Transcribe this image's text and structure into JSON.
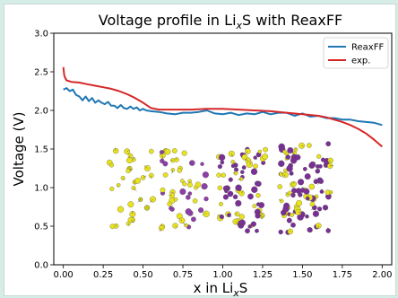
{
  "chart_data": {
    "type": "line",
    "title": "Voltage profile in Li<sub>x</sub>S with ReaxFF",
    "title_parts": {
      "prefix": "Voltage profile in Li",
      "sub": "x",
      "suffix": "S with ReaxFF"
    },
    "xlabel_parts": {
      "prefix": "x in Li",
      "sub": "x",
      "suffix": "S"
    },
    "ylabel": "Voltage (V)",
    "xlim": [
      -0.06,
      2.06
    ],
    "ylim": [
      0.0,
      3.0
    ],
    "xticks": [
      "0.00",
      "0.25",
      "0.50",
      "0.75",
      "1.00",
      "1.25",
      "1.50",
      "1.75",
      "2.00"
    ],
    "yticks": [
      "0.0",
      "0.5",
      "1.0",
      "1.5",
      "2.0",
      "2.5",
      "3.0"
    ],
    "legend_position": "top-right",
    "series": [
      {
        "name": "ReaxFF",
        "color": "#1f77b4",
        "x": [
          0.0,
          0.02,
          0.04,
          0.06,
          0.08,
          0.1,
          0.12,
          0.14,
          0.16,
          0.18,
          0.2,
          0.22,
          0.24,
          0.26,
          0.28,
          0.3,
          0.32,
          0.34,
          0.36,
          0.38,
          0.4,
          0.42,
          0.44,
          0.46,
          0.48,
          0.5,
          0.52,
          0.55,
          0.6,
          0.65,
          0.7,
          0.75,
          0.8,
          0.85,
          0.9,
          0.95,
          1.0,
          1.05,
          1.1,
          1.15,
          1.2,
          1.25,
          1.3,
          1.35,
          1.4,
          1.45,
          1.5,
          1.55,
          1.6,
          1.65,
          1.7,
          1.75,
          1.8,
          1.85,
          1.9,
          1.95,
          2.0
        ],
        "y": [
          2.27,
          2.29,
          2.25,
          2.27,
          2.2,
          2.18,
          2.13,
          2.18,
          2.12,
          2.16,
          2.1,
          2.13,
          2.1,
          2.08,
          2.11,
          2.06,
          2.06,
          2.03,
          2.07,
          2.03,
          2.02,
          2.05,
          2.02,
          2.04,
          2.0,
          2.02,
          2.0,
          1.99,
          1.98,
          1.96,
          1.95,
          1.97,
          1.97,
          1.98,
          2.0,
          1.96,
          1.95,
          1.97,
          1.94,
          1.96,
          1.95,
          1.98,
          1.95,
          1.97,
          1.97,
          1.93,
          1.96,
          1.92,
          1.93,
          1.9,
          1.9,
          1.88,
          1.88,
          1.86,
          1.85,
          1.84,
          1.81
        ]
      },
      {
        "name": "exp.",
        "color": "#d62728",
        "x": [
          0.0,
          0.005,
          0.01,
          0.02,
          0.05,
          0.1,
          0.15,
          0.2,
          0.25,
          0.3,
          0.35,
          0.4,
          0.45,
          0.5,
          0.55,
          0.6,
          0.7,
          0.8,
          0.9,
          1.0,
          1.1,
          1.2,
          1.3,
          1.4,
          1.5,
          1.6,
          1.65,
          1.7,
          1.75,
          1.8,
          1.85,
          1.9,
          1.95,
          2.0
        ],
        "y": [
          2.56,
          2.46,
          2.43,
          2.39,
          2.37,
          2.36,
          2.34,
          2.32,
          2.3,
          2.28,
          2.25,
          2.21,
          2.16,
          2.1,
          2.03,
          2.01,
          2.01,
          2.01,
          2.02,
          2.02,
          2.01,
          2.0,
          1.99,
          1.97,
          1.95,
          1.93,
          1.91,
          1.88,
          1.85,
          1.81,
          1.76,
          1.7,
          1.62,
          1.53
        ]
      }
    ]
  },
  "insets": [
    {
      "name": "inset-structure-1",
      "colors": [
        "#e9e21e",
        "#c7c61a"
      ]
    },
    {
      "name": "inset-structure-2",
      "colors": [
        "#e9e21e",
        "#8e3fa8"
      ]
    },
    {
      "name": "inset-structure-3",
      "colors": [
        "#7a2f96",
        "#e9e21e"
      ]
    },
    {
      "name": "inset-structure-4",
      "colors": [
        "#7a2f96",
        "#e9e21e"
      ]
    }
  ]
}
